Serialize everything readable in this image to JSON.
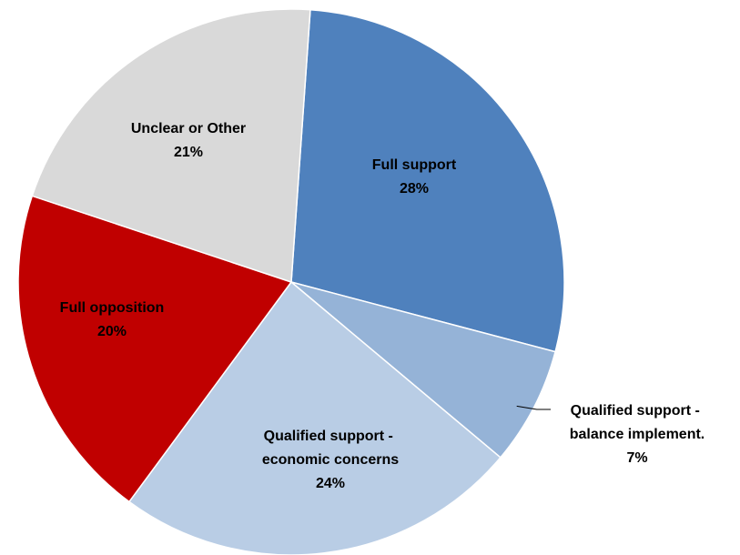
{
  "chart_data": {
    "type": "pie",
    "categories": [
      "Full support",
      "Qualified support - balance implement.",
      "Qualified support - economic concerns",
      "Full opposition",
      "Unclear or Other"
    ],
    "values": [
      28,
      7,
      24,
      20,
      21
    ],
    "value_labels": [
      "28%",
      "7%",
      "24%",
      "20%",
      "21%"
    ],
    "colors": [
      "#4f81bd",
      "#95b3d7",
      "#b9cde5",
      "#c00000",
      "#d9d9d9"
    ]
  }
}
